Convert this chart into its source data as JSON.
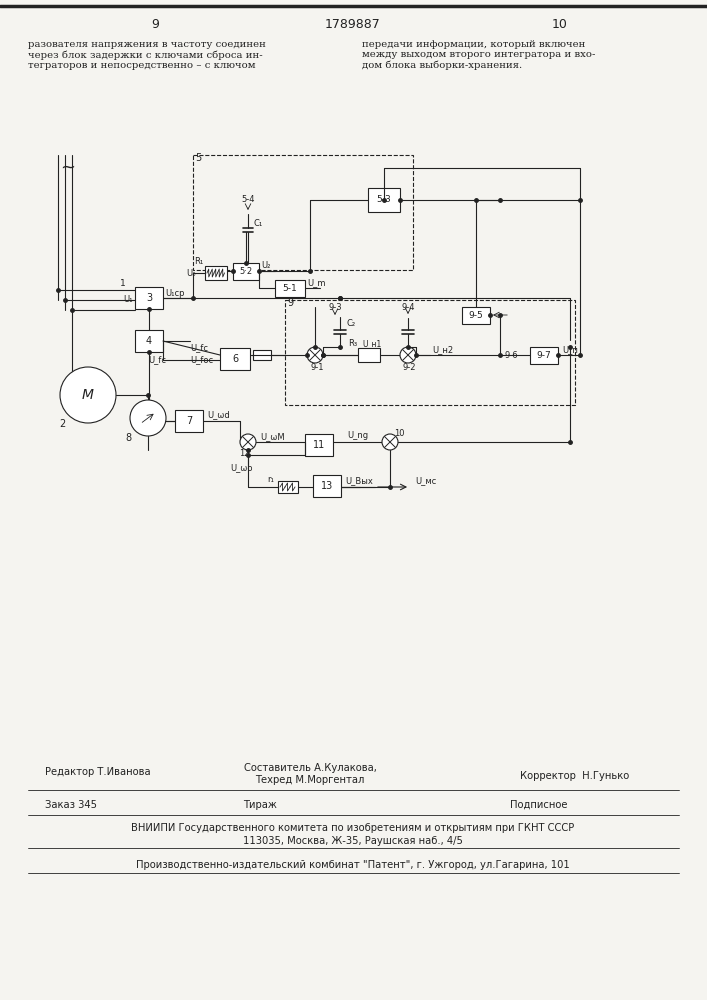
{
  "page_numbers": [
    "9",
    "10"
  ],
  "patent_number": "1789887",
  "left_text": "разователя напряжения в частоту соединен\nчерез блок задержки с ключами сброса ин-\nтеграторов и непосредственно – с ключом",
  "right_text": "передачи информации, который включен\nмежду выходом второго интегратора и вхо-\nдом блока выборки-хранения.",
  "bottom_texts": {
    "editor": "Редактор Т.Иванова",
    "composer": "Составитель А.Кулакова,",
    "techred": "Техред М.Моргентал",
    "corrector": "Корректор  Н.Гунько",
    "order": "Заказ 345",
    "tirazh": "Тираж",
    "podpisnoe": "Подписное",
    "vniiipi": "ВНИИПИ Государственного комитета по изобретениям и открытиям при ГКНТ СССР",
    "address": "113035, Москва, Ж-35, Раушская наб., 4/5",
    "factory": "Производственно-издательский комбинат \"Патент\", г. Ужгород, ул.Гагарина, 101"
  },
  "bg_color": "#f5f4f0",
  "line_color": "#222222"
}
